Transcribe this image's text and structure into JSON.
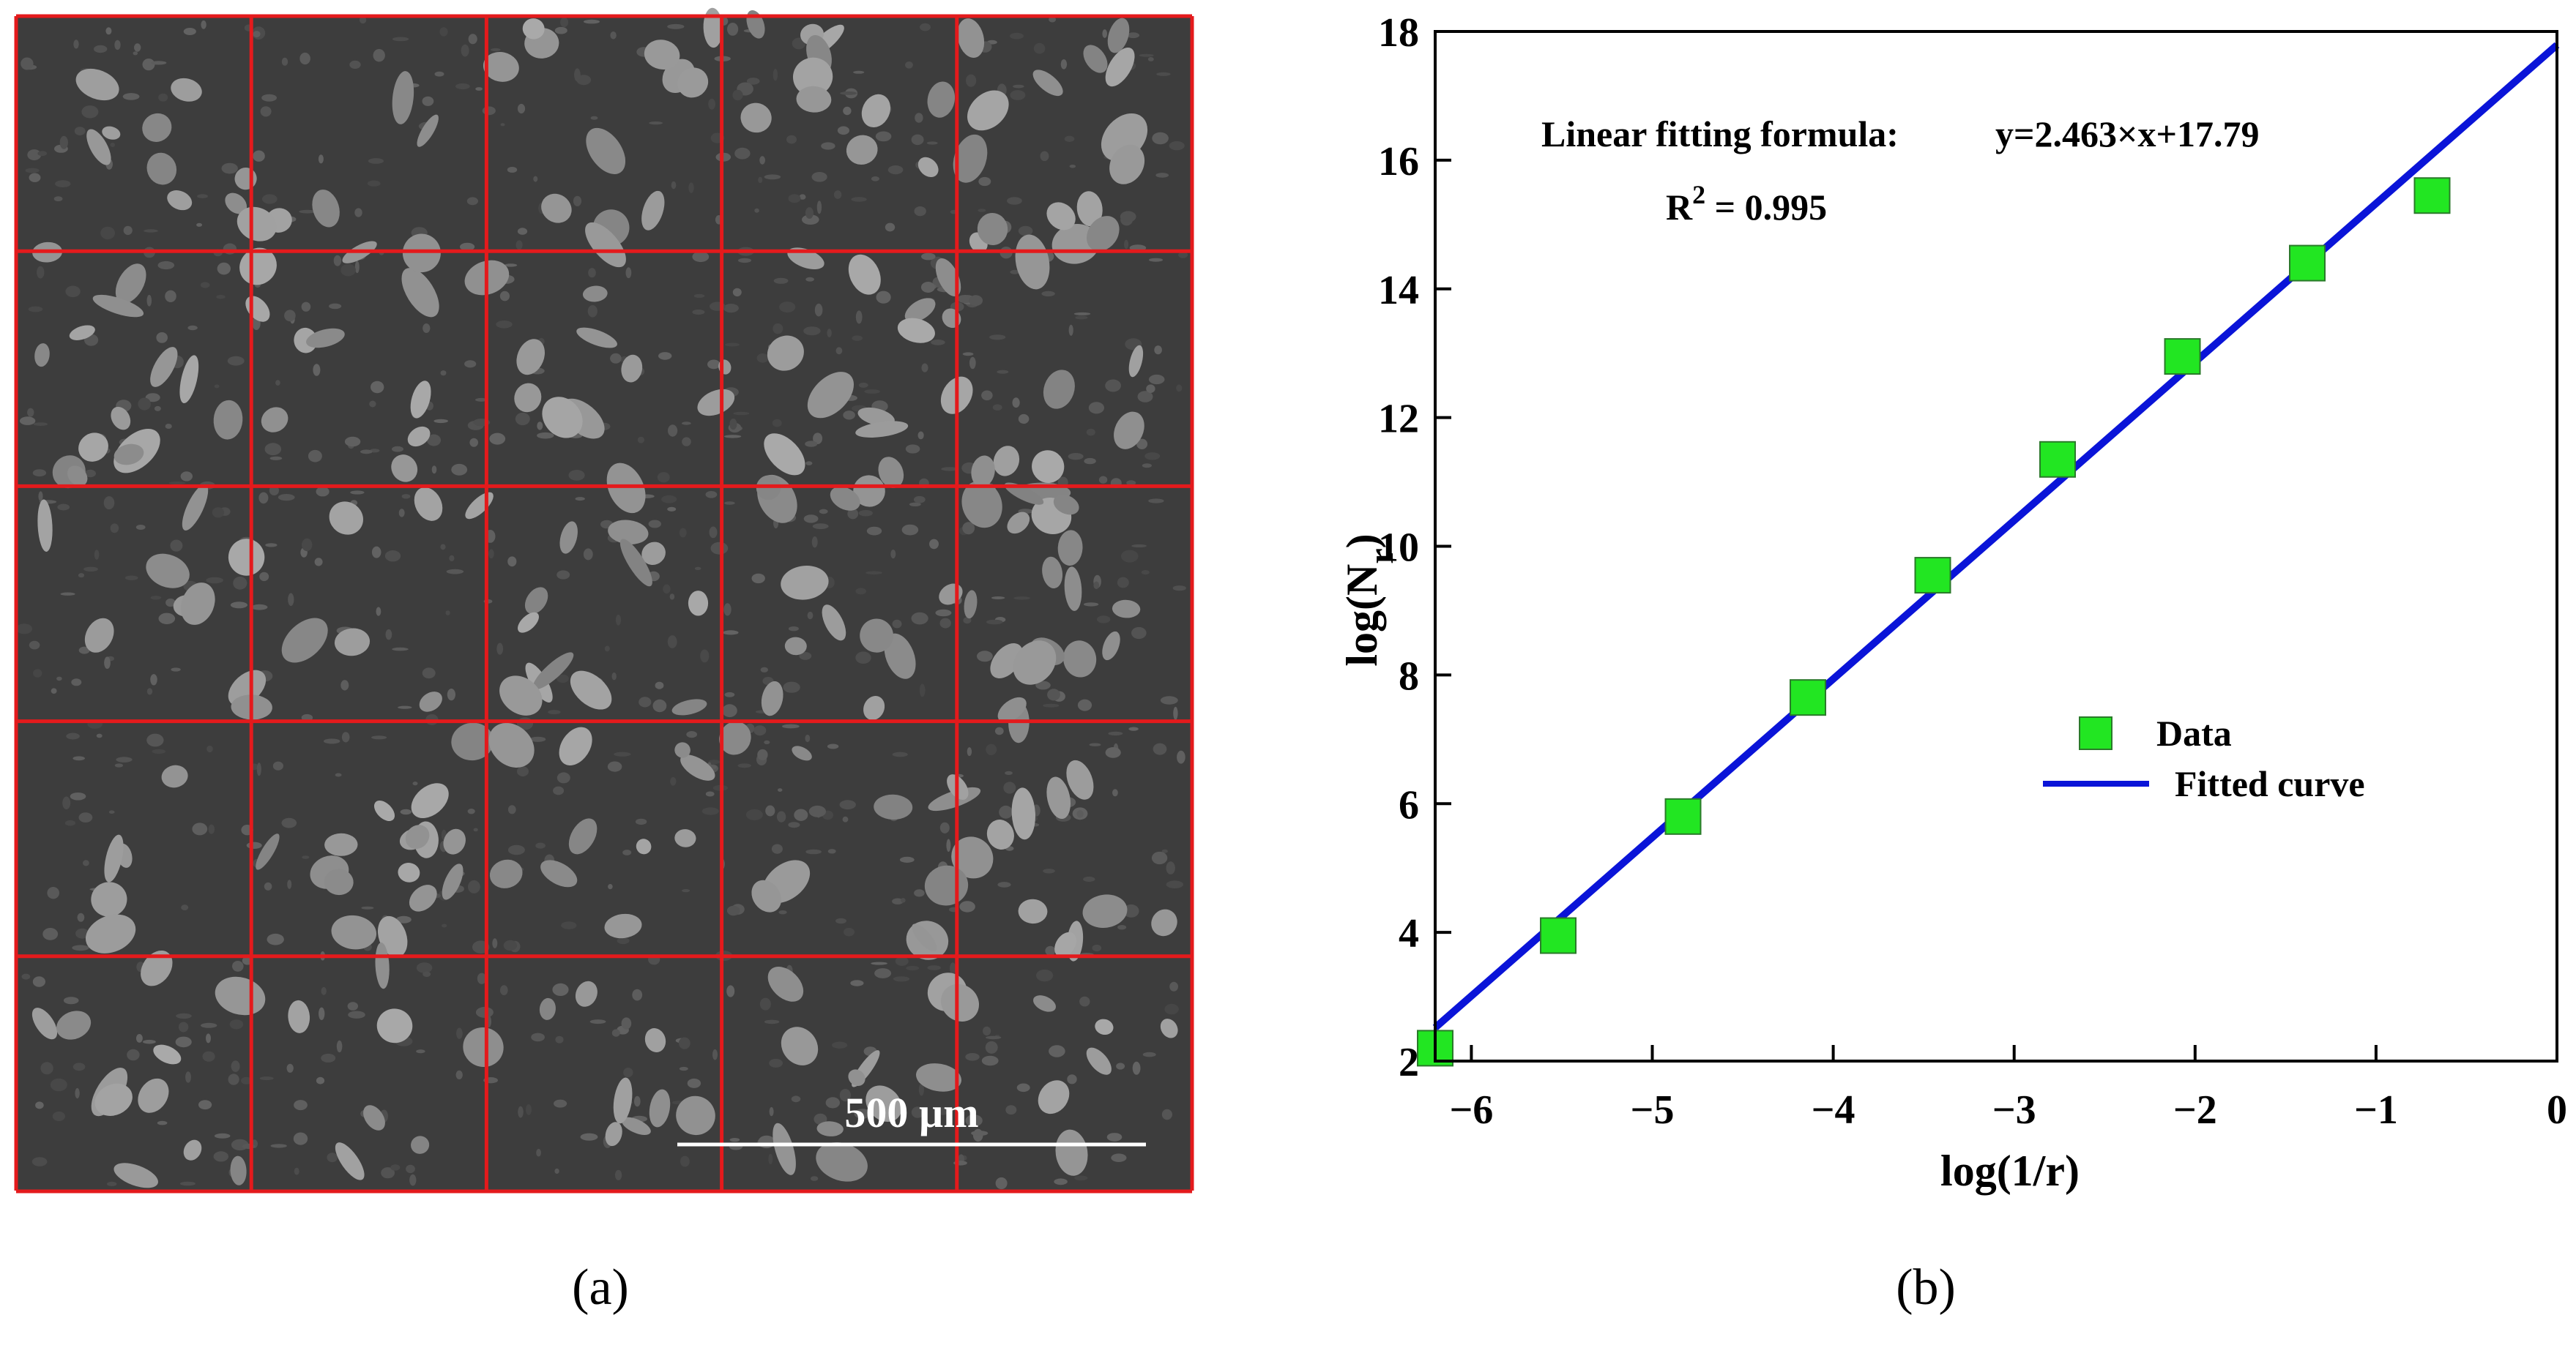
{
  "panels": {
    "a": {
      "label": "(a)",
      "scale_bar": "500 µm",
      "grid": {
        "rows": 5,
        "cols": 5
      },
      "colors": {
        "grid_lines": "#e41a1c",
        "background": "#3b3b3b",
        "grains": "#9a9a9a",
        "scale_bar": "#ffffff"
      }
    },
    "b": {
      "label": "(b)"
    }
  },
  "chart_data": {
    "type": "scatter",
    "xlabel": "log(1/r)",
    "ylabel_main": "log(N",
    "ylabel_sub": "r",
    "ylabel_end": ")",
    "xlim": [
      -6.2,
      0
    ],
    "ylim": [
      2,
      18
    ],
    "xticks": [
      -6,
      -5,
      -4,
      -3,
      -2,
      -1,
      0
    ],
    "xtick_labels": [
      "−6",
      "−5",
      "−4",
      "−3",
      "−2",
      "−1",
      "0"
    ],
    "yticks": [
      2,
      4,
      6,
      8,
      10,
      12,
      14,
      16,
      18
    ],
    "ytick_labels": [
      "2",
      "4",
      "6",
      "8",
      "10",
      "12",
      "14",
      "16",
      "18"
    ],
    "annotations": {
      "formula_label": "Linear fitting formula:",
      "formula": "y=2.463×x+17.79",
      "r2_main": "R",
      "r2_sup": "2",
      "r2_value": " = 0.995"
    },
    "legend": {
      "placement": "center-right",
      "entries": [
        "Data",
        "Fitted curve"
      ]
    },
    "series": [
      {
        "name": "Data",
        "marker": "square",
        "color": "#22e622",
        "x": [
          -6.2,
          -5.52,
          -4.83,
          -4.14,
          -3.45,
          -2.76,
          -2.07,
          -1.38,
          -0.69
        ],
        "y": [
          2.2,
          3.95,
          5.8,
          7.65,
          9.55,
          11.35,
          12.95,
          14.4,
          15.45
        ]
      },
      {
        "name": "Fitted curve",
        "type": "line",
        "color": "#0a14d8",
        "slope": 2.463,
        "intercept": 17.79
      }
    ]
  }
}
